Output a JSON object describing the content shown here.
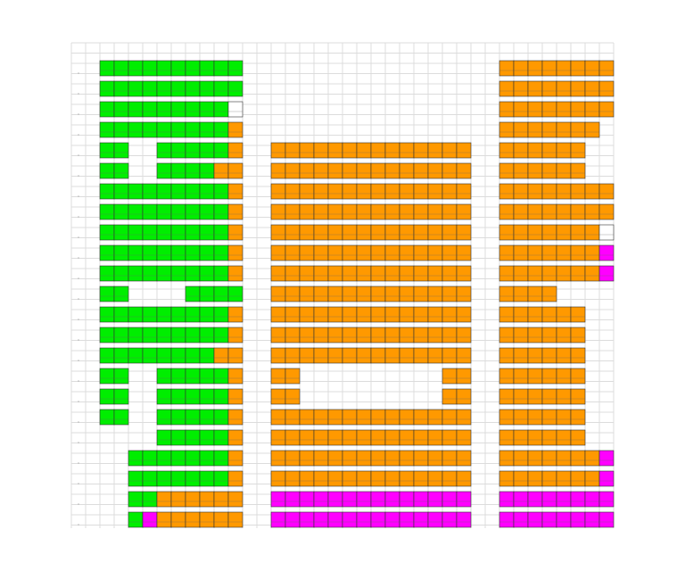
{
  "sheet": {
    "blocks": [
      [
        [
          [
            "#00ee00",
            10
          ]
        ],
        [
          [
            null,
            14
          ]
        ],
        [
          [
            "#ff9900",
            8
          ]
        ]
      ],
      [
        [
          [
            "#00ee00",
            10
          ]
        ],
        [
          [
            null,
            14
          ]
        ],
        [
          [
            "#ff9900",
            8
          ]
        ]
      ],
      [
        [
          [
            "#00ee00",
            9
          ],
          [
            "#ffffff",
            1
          ]
        ],
        [
          [
            null,
            14
          ]
        ],
        [
          [
            "#ff9900",
            8
          ]
        ]
      ],
      [
        [
          [
            "#00ee00",
            9
          ],
          [
            "#ff9900",
            1
          ]
        ],
        [
          [
            null,
            14
          ]
        ],
        [
          [
            "#ff9900",
            7
          ],
          [
            null,
            1
          ]
        ]
      ],
      [
        [
          [
            "#00ee00",
            2
          ],
          [
            null,
            2
          ],
          [
            "#00ee00",
            5
          ],
          [
            "#ff9900",
            1
          ]
        ],
        [
          [
            "#ff9900",
            14
          ]
        ],
        [
          [
            "#ff9900",
            6
          ],
          [
            null,
            2
          ]
        ]
      ],
      [
        [
          [
            "#00ee00",
            2
          ],
          [
            null,
            2
          ],
          [
            "#00ee00",
            4
          ],
          [
            "#ff9900",
            2
          ]
        ],
        [
          [
            "#ff9900",
            14
          ]
        ],
        [
          [
            "#ff9900",
            6
          ],
          [
            null,
            2
          ]
        ]
      ],
      [
        [
          [
            "#00ee00",
            9
          ],
          [
            "#ff9900",
            1
          ]
        ],
        [
          [
            "#ff9900",
            14
          ]
        ],
        [
          [
            "#ff9900",
            8
          ]
        ]
      ],
      [
        [
          [
            "#00ee00",
            9
          ],
          [
            "#ff9900",
            1
          ]
        ],
        [
          [
            "#ff9900",
            14
          ]
        ],
        [
          [
            "#ff9900",
            8
          ]
        ]
      ],
      [
        [
          [
            "#00ee00",
            9
          ],
          [
            "#ff9900",
            1
          ]
        ],
        [
          [
            "#ff9900",
            14
          ]
        ],
        [
          [
            "#ff9900",
            7
          ],
          [
            "#ffffff",
            1
          ]
        ]
      ],
      [
        [
          [
            "#00ee00",
            9
          ],
          [
            "#ff9900",
            1
          ]
        ],
        [
          [
            "#ff9900",
            14
          ]
        ],
        [
          [
            "#ff9900",
            7
          ],
          [
            "#ff00ff",
            1
          ]
        ]
      ],
      [
        [
          [
            "#00ee00",
            9
          ],
          [
            "#ff9900",
            1
          ]
        ],
        [
          [
            "#ff9900",
            14
          ]
        ],
        [
          [
            "#ff9900",
            7
          ],
          [
            "#ff00ff",
            1
          ]
        ]
      ],
      [
        [
          [
            "#00ee00",
            2
          ],
          [
            null,
            4
          ],
          [
            "#00ee00",
            4
          ]
        ],
        [
          [
            "#ff9900",
            14
          ]
        ],
        [
          [
            "#ff9900",
            4
          ],
          [
            null,
            4
          ]
        ]
      ],
      [
        [
          [
            "#00ee00",
            9
          ],
          [
            "#ff9900",
            1
          ]
        ],
        [
          [
            "#ff9900",
            14
          ]
        ],
        [
          [
            "#ff9900",
            6
          ],
          [
            null,
            2
          ]
        ]
      ],
      [
        [
          [
            "#00ee00",
            9
          ],
          [
            "#ff9900",
            1
          ]
        ],
        [
          [
            "#ff9900",
            14
          ]
        ],
        [
          [
            "#ff9900",
            6
          ],
          [
            null,
            2
          ]
        ]
      ],
      [
        [
          [
            "#00ee00",
            8
          ],
          [
            "#ff9900",
            2
          ]
        ],
        [
          [
            "#ff9900",
            14
          ]
        ],
        [
          [
            "#ff9900",
            6
          ],
          [
            null,
            2
          ]
        ]
      ],
      [
        [
          [
            "#00ee00",
            2
          ],
          [
            null,
            2
          ],
          [
            "#00ee00",
            5
          ],
          [
            "#ff9900",
            1
          ]
        ],
        [
          [
            "#ff9900",
            2
          ],
          [
            null,
            10
          ],
          [
            "#ff9900",
            2
          ]
        ],
        [
          [
            "#ff9900",
            6
          ],
          [
            null,
            2
          ]
        ]
      ],
      [
        [
          [
            "#00ee00",
            2
          ],
          [
            null,
            2
          ],
          [
            "#00ee00",
            5
          ],
          [
            "#ff9900",
            1
          ]
        ],
        [
          [
            "#ff9900",
            2
          ],
          [
            null,
            10
          ],
          [
            "#ff9900",
            2
          ]
        ],
        [
          [
            "#ff9900",
            6
          ],
          [
            null,
            2
          ]
        ]
      ],
      [
        [
          [
            "#00ee00",
            2
          ],
          [
            null,
            2
          ],
          [
            "#00ee00",
            5
          ],
          [
            "#ff9900",
            1
          ]
        ],
        [
          [
            "#ff9900",
            14
          ]
        ],
        [
          [
            "#ff9900",
            6
          ],
          [
            null,
            2
          ]
        ]
      ],
      [
        [
          [
            null,
            4
          ],
          [
            "#00ee00",
            5
          ],
          [
            "#ff9900",
            1
          ]
        ],
        [
          [
            "#ff9900",
            14
          ]
        ],
        [
          [
            "#ff9900",
            6
          ],
          [
            null,
            2
          ]
        ]
      ],
      [
        [
          [
            null,
            2
          ],
          [
            "#00ee00",
            7
          ],
          [
            "#ff9900",
            1
          ]
        ],
        [
          [
            "#ff9900",
            14
          ]
        ],
        [
          [
            "#ff9900",
            7
          ],
          [
            "#ff00ff",
            1
          ]
        ]
      ],
      [
        [
          [
            null,
            2
          ],
          [
            "#00ee00",
            7
          ],
          [
            "#ff9900",
            1
          ]
        ],
        [
          [
            "#ff9900",
            14
          ]
        ],
        [
          [
            "#ff9900",
            7
          ],
          [
            "#ff00ff",
            1
          ]
        ]
      ],
      [
        [
          [
            null,
            2
          ],
          [
            "#00ee00",
            2
          ],
          [
            "#ff9900",
            6
          ]
        ],
        [
          [
            "#ff00ff",
            14
          ]
        ],
        [
          [
            "#ff00ff",
            8
          ]
        ]
      ],
      [
        [
          [
            null,
            2
          ],
          [
            "#00ee00",
            1
          ],
          [
            "#ff00ff",
            1
          ],
          [
            "#ff9900",
            6
          ]
        ],
        [
          [
            "#ff00ff",
            14
          ]
        ],
        [
          [
            "#ff00ff",
            8
          ]
        ]
      ]
    ]
  }
}
